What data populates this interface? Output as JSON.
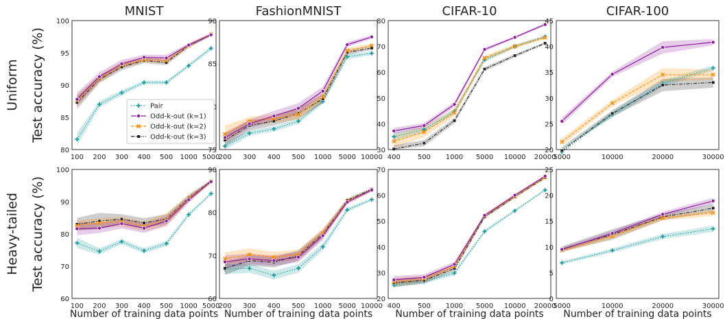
{
  "colors": {
    "pair": "#1a9a9a",
    "k1": "#8b1a9b",
    "k2": "#ff8c00",
    "k3": "#222222"
  },
  "legend": {
    "entries": [
      {
        "key": "pair",
        "label": "Pair",
        "marker": "plus",
        "dash": "1.5,2.2"
      },
      {
        "key": "k1",
        "label": "Odd-k-out (k=1)",
        "marker": "circle",
        "dash": ""
      },
      {
        "key": "k2",
        "label": "Odd-k-out (k=2)",
        "marker": "x",
        "dash": "4,2"
      },
      {
        "key": "k3",
        "label": "Odd-k-out (k=3)",
        "marker": "square",
        "dash": "5,2,1.5,2"
      }
    ]
  },
  "row_labels": [
    "Uniform",
    "Heavy-tailed"
  ],
  "column_titles": [
    "MNIST",
    "FashionMNIST",
    "CIFAR-10",
    "CIFAR-100"
  ],
  "ylabel": "Test accuracy (%)",
  "xlabel": "Number of training data points",
  "chart_data": [
    {
      "type": "line",
      "row": "Uniform",
      "title": "MNIST",
      "categories": [
        "100",
        "200",
        "300",
        "400",
        "500",
        "1000",
        "5000"
      ],
      "ylim": [
        80,
        100
      ],
      "yticks": [
        80,
        85,
        90,
        95,
        100
      ],
      "series": [
        {
          "name": "Pair",
          "key": "pair",
          "values": [
            81.6,
            87.0,
            88.8,
            90.4,
            90.4,
            93.0,
            95.7
          ],
          "band": [
            1.0,
            0.5,
            0.4,
            0.3,
            0.3,
            0.3,
            0.3
          ]
        },
        {
          "name": "Odd-k-out (k=1)",
          "key": "k1",
          "values": [
            87.8,
            91.3,
            93.3,
            94.3,
            94.2,
            96.2,
            97.8
          ],
          "band": [
            1.0,
            0.7,
            0.6,
            0.4,
            0.5,
            0.3,
            0.2
          ]
        },
        {
          "name": "Odd-k-out (k=2)",
          "key": "k2",
          "values": [
            87.6,
            91.0,
            93.1,
            93.9,
            93.8,
            96.1,
            97.9
          ],
          "band": [
            0.9,
            0.6,
            0.5,
            0.4,
            0.4,
            0.3,
            0.2
          ]
        },
        {
          "name": "Odd-k-out (k=3)",
          "key": "k3",
          "values": [
            87.3,
            90.9,
            92.8,
            93.8,
            93.5,
            96.1,
            97.8
          ],
          "band": [
            1.0,
            0.6,
            0.5,
            0.4,
            0.4,
            0.3,
            0.2
          ]
        }
      ]
    },
    {
      "type": "line",
      "row": "Uniform",
      "title": "FashionMNIST",
      "categories": [
        "200",
        "300",
        "400",
        "500",
        "1000",
        "5000",
        "10000"
      ],
      "ylim": [
        75,
        90
      ],
      "yticks": [
        75,
        80,
        85,
        90
      ],
      "series": [
        {
          "name": "Pair",
          "key": "pair",
          "values": [
            75.4,
            76.9,
            77.4,
            78.3,
            80.6,
            85.8,
            86.2
          ],
          "band": [
            0.5,
            0.3,
            0.3,
            0.3,
            0.3,
            0.3,
            0.2
          ]
        },
        {
          "name": "Odd-k-out (k=1)",
          "key": "k1",
          "values": [
            76.4,
            78.0,
            78.9,
            79.8,
            81.8,
            87.2,
            88.1
          ],
          "band": [
            0.6,
            0.5,
            0.6,
            0.6,
            0.5,
            0.3,
            0.2
          ]
        },
        {
          "name": "Odd-k-out (k=2)",
          "key": "k2",
          "values": [
            76.8,
            78.3,
            78.6,
            79.1,
            81.1,
            86.5,
            87.1
          ],
          "band": [
            1.0,
            0.5,
            0.5,
            0.6,
            0.5,
            0.3,
            0.2
          ]
        },
        {
          "name": "Odd-k-out (k=3)",
          "key": "k3",
          "values": [
            76.1,
            77.8,
            78.3,
            79.2,
            80.9,
            86.3,
            86.8
          ],
          "band": [
            0.7,
            0.6,
            0.5,
            0.6,
            0.5,
            0.3,
            0.2
          ]
        }
      ]
    },
    {
      "type": "line",
      "row": "Uniform",
      "title": "CIFAR-10",
      "categories": [
        "400",
        "500",
        "1000",
        "5000",
        "10000",
        "20000"
      ],
      "ylim": [
        30,
        80
      ],
      "yticks": [
        30,
        40,
        50,
        60,
        70,
        80
      ],
      "series": [
        {
          "name": "Pair",
          "key": "pair",
          "values": [
            35.0,
            37.8,
            44.8,
            64.8,
            70.0,
            73.8
          ],
          "band": [
            1.5,
            1.0,
            1.0,
            0.8,
            0.6,
            0.5
          ]
        },
        {
          "name": "Odd-k-out (k=1)",
          "key": "k1",
          "values": [
            37.2,
            39.3,
            47.5,
            68.8,
            73.5,
            78.5
          ],
          "band": [
            1.2,
            1.0,
            1.0,
            0.7,
            0.5,
            0.4
          ]
        },
        {
          "name": "Odd-k-out (k=2)",
          "key": "k2",
          "values": [
            33.2,
            36.8,
            44.3,
            65.5,
            70.0,
            73.4
          ],
          "band": [
            2.5,
            2.0,
            1.5,
            1.0,
            0.8,
            0.6
          ]
        },
        {
          "name": "Odd-k-out (k=3)",
          "key": "k3",
          "values": [
            30.2,
            32.5,
            41.2,
            61.2,
            66.4,
            71.2
          ],
          "band": [
            1.5,
            1.2,
            1.0,
            0.8,
            0.6,
            0.5
          ]
        }
      ]
    },
    {
      "type": "line",
      "row": "Uniform",
      "title": "CIFAR-100",
      "categories": [
        "5000",
        "10000",
        "20000",
        "30000"
      ],
      "ylim": [
        20,
        45
      ],
      "yticks": [
        20,
        25,
        30,
        35,
        40,
        45
      ],
      "series": [
        {
          "name": "Pair",
          "key": "pair",
          "values": [
            19.5,
            26.8,
            32.8,
            35.8
          ],
          "band": [
            0.6,
            0.6,
            0.6,
            0.5
          ]
        },
        {
          "name": "Odd-k-out (k=1)",
          "key": "k1",
          "values": [
            25.5,
            34.6,
            39.8,
            40.8
          ],
          "band": [
            0.7,
            0.5,
            1.2,
            0.6
          ]
        },
        {
          "name": "Odd-k-out (k=2)",
          "key": "k2",
          "values": [
            21.5,
            29.0,
            34.5,
            34.5
          ],
          "band": [
            0.7,
            0.6,
            1.3,
            1.0
          ]
        },
        {
          "name": "Odd-k-out (k=3)",
          "key": "k3",
          "values": [
            19.8,
            27.0,
            32.5,
            33.0
          ],
          "band": [
            0.7,
            0.6,
            1.2,
            1.0
          ]
        }
      ]
    },
    {
      "type": "line",
      "row": "Heavy-tailed",
      "title": "MNIST",
      "categories": [
        "100",
        "200",
        "300",
        "400",
        "500",
        "1000",
        "5000"
      ],
      "ylim": [
        60,
        100
      ],
      "yticks": [
        60,
        70,
        80,
        90,
        100
      ],
      "series": [
        {
          "name": "Pair",
          "key": "pair",
          "values": [
            77.2,
            74.6,
            77.6,
            74.8,
            77.0,
            86.0,
            92.5
          ],
          "band": [
            1.6,
            1.0,
            0.8,
            0.8,
            0.8,
            0.6,
            0.4
          ]
        },
        {
          "name": "Odd-k-out (k=1)",
          "key": "k1",
          "values": [
            81.6,
            81.8,
            83.2,
            81.8,
            84.0,
            90.6,
            96.2
          ],
          "band": [
            2.0,
            1.5,
            1.5,
            1.5,
            1.5,
            1.0,
            0.4
          ]
        },
        {
          "name": "Odd-k-out (k=2)",
          "key": "k2",
          "values": [
            82.6,
            83.4,
            83.8,
            82.4,
            84.4,
            91.0,
            96.3
          ],
          "band": [
            1.5,
            1.5,
            1.5,
            1.5,
            2.0,
            1.0,
            0.4
          ]
        },
        {
          "name": "Odd-k-out (k=3)",
          "key": "k3",
          "values": [
            83.0,
            84.0,
            84.6,
            83.4,
            84.6,
            91.2,
            96.4
          ],
          "band": [
            2.0,
            2.5,
            1.5,
            1.5,
            1.5,
            1.0,
            0.4
          ]
        }
      ]
    },
    {
      "type": "line",
      "row": "Heavy-tailed",
      "title": "FashionMNIST",
      "categories": [
        "200",
        "300",
        "400",
        "500",
        "1000",
        "5000",
        "10000"
      ],
      "ylim": [
        60,
        90
      ],
      "yticks": [
        60,
        70,
        80,
        90
      ],
      "series": [
        {
          "name": "Pair",
          "key": "pair",
          "values": [
            66.8,
            67.0,
            65.4,
            67.0,
            72.0,
            80.6,
            83.0
          ],
          "band": [
            1.2,
            1.0,
            1.0,
            1.0,
            0.8,
            0.5,
            0.3
          ]
        },
        {
          "name": "Odd-k-out (k=1)",
          "key": "k1",
          "values": [
            68.5,
            69.2,
            68.8,
            69.6,
            74.6,
            82.4,
            85.2
          ],
          "band": [
            1.5,
            1.2,
            1.2,
            1.2,
            1.0,
            0.5,
            0.3
          ]
        },
        {
          "name": "Odd-k-out (k=2)",
          "key": "k2",
          "values": [
            69.2,
            70.2,
            69.6,
            70.2,
            75.2,
            82.6,
            85.2
          ],
          "band": [
            1.5,
            1.5,
            1.2,
            1.2,
            1.0,
            0.5,
            0.3
          ]
        },
        {
          "name": "Odd-k-out (k=3)",
          "key": "k3",
          "values": [
            67.0,
            68.8,
            68.4,
            70.0,
            75.0,
            82.8,
            85.4
          ],
          "band": [
            1.5,
            1.2,
            1.2,
            1.2,
            1.0,
            0.5,
            0.3
          ]
        }
      ]
    },
    {
      "type": "line",
      "row": "Heavy-tailed",
      "title": "CIFAR-10",
      "categories": [
        "400",
        "500",
        "1000",
        "5000",
        "10000",
        "20000"
      ],
      "ylim": [
        20,
        70
      ],
      "yticks": [
        20,
        30,
        40,
        50,
        60,
        70
      ],
      "series": [
        {
          "name": "Pair",
          "key": "pair",
          "values": [
            25.2,
            26.6,
            29.8,
            46.0,
            54.0,
            62.0
          ],
          "band": [
            1.0,
            0.8,
            0.8,
            0.6,
            0.5,
            0.4
          ]
        },
        {
          "name": "Odd-k-out (k=1)",
          "key": "k1",
          "values": [
            27.2,
            28.2,
            33.2,
            52.2,
            60.0,
            67.4
          ],
          "band": [
            1.5,
            1.2,
            1.0,
            0.6,
            0.5,
            0.4
          ]
        },
        {
          "name": "Odd-k-out (k=2)",
          "key": "k2",
          "values": [
            26.4,
            27.6,
            32.4,
            52.0,
            59.6,
            67.0
          ],
          "band": [
            1.5,
            1.2,
            1.0,
            0.6,
            0.5,
            0.4
          ]
        },
        {
          "name": "Odd-k-out (k=3)",
          "key": "k3",
          "values": [
            26.0,
            27.0,
            31.6,
            51.6,
            59.4,
            66.8
          ],
          "band": [
            1.5,
            1.2,
            1.0,
            0.6,
            0.5,
            0.4
          ]
        }
      ]
    },
    {
      "type": "line",
      "row": "Heavy-tailed",
      "title": "CIFAR-100",
      "categories": [
        "5000",
        "10000",
        "20000",
        "30000"
      ],
      "ylim": [
        0,
        25
      ],
      "yticks": [
        0,
        5,
        10,
        15,
        20,
        25
      ],
      "series": [
        {
          "name": "Pair",
          "key": "pair",
          "values": [
            6.9,
            9.3,
            12.0,
            13.5
          ],
          "band": [
            0.3,
            0.4,
            0.5,
            0.6
          ]
        },
        {
          "name": "Odd-k-out (k=1)",
          "key": "k1",
          "values": [
            9.5,
            12.6,
            16.3,
            18.9
          ],
          "band": [
            0.4,
            0.5,
            0.5,
            0.6
          ]
        },
        {
          "name": "Odd-k-out (k=2)",
          "key": "k2",
          "values": [
            9.3,
            12.1,
            15.6,
            16.6
          ],
          "band": [
            0.4,
            0.5,
            0.5,
            0.6
          ]
        },
        {
          "name": "Odd-k-out (k=3)",
          "key": "k3",
          "values": [
            9.6,
            12.4,
            15.8,
            17.5
          ],
          "band": [
            0.5,
            1.0,
            0.6,
            0.8
          ]
        }
      ]
    }
  ]
}
